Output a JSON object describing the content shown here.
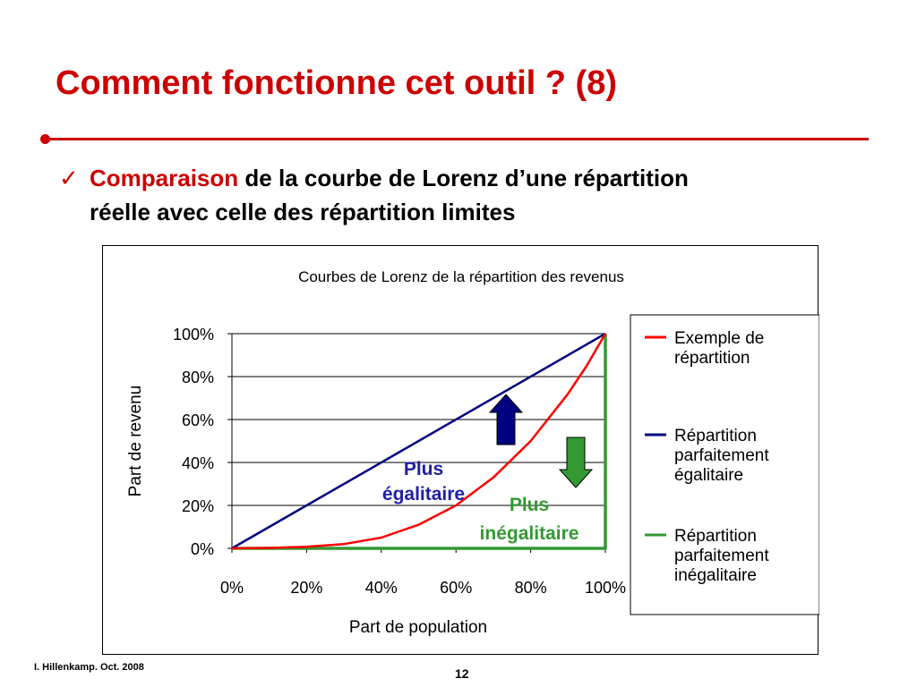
{
  "slide": {
    "title": "Comment fonctionne cet outil ? (8)",
    "bullet_highlight": "Comparaison",
    "bullet_line1_rest": " de la courbe de Lorenz d’une répartition",
    "bullet_line2": "réelle avec celle des répartition limites",
    "check_glyph": "✓",
    "author": "I. Hillenkamp. Oct. 2008",
    "page_number": "12",
    "accent_color": "#cc0000"
  },
  "chart_data": {
    "type": "line",
    "title": "Courbes de Lorenz de la répartition des revenus",
    "xlabel": "Part de population",
    "ylabel": "Part de revenu",
    "x_ticks": [
      "0%",
      "20%",
      "40%",
      "60%",
      "80%",
      "100%"
    ],
    "y_ticks": [
      "0%",
      "20%",
      "40%",
      "60%",
      "80%",
      "100%"
    ],
    "xlim": [
      0,
      100
    ],
    "ylim": [
      0,
      100
    ],
    "grid": "horizontal",
    "legend_position": "right",
    "series": [
      {
        "name": "Exemple de répartition",
        "color": "#ff0000",
        "x": [
          0,
          10,
          20,
          30,
          40,
          50,
          60,
          70,
          80,
          90,
          95,
          100
        ],
        "y": [
          0,
          0.2,
          0.7,
          2,
          5,
          11,
          20,
          33,
          50,
          72,
          85,
          100
        ]
      },
      {
        "name": "Répartition parfaitement égalitaire",
        "color": "#000080",
        "x": [
          0,
          100
        ],
        "y": [
          0,
          100
        ]
      },
      {
        "name": "Répartition parfaitement inégalitaire",
        "color": "#339933",
        "x": [
          0,
          100,
          100
        ],
        "y": [
          0,
          0,
          100
        ]
      }
    ],
    "annotations": [
      {
        "text_line1": "Plus",
        "text_line2": "égalitaire",
        "color": "#1f1fa8",
        "arrow": "up",
        "arrow_color": "#000080"
      },
      {
        "text_line1": "Plus",
        "text_line2": "inégalitaire",
        "color": "#339933",
        "arrow": "down",
        "arrow_color": "#339933"
      }
    ]
  }
}
